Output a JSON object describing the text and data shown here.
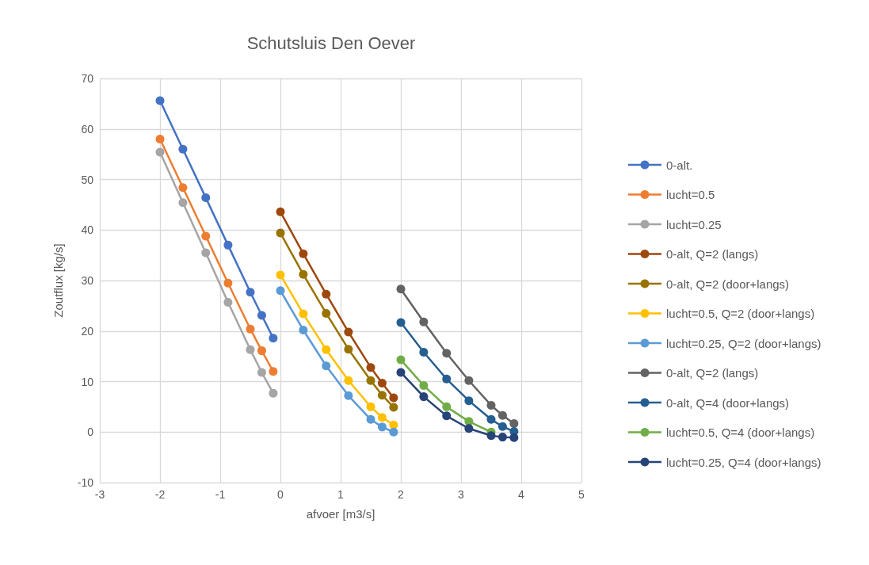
{
  "chart_data": {
    "type": "line",
    "title": "Schutsluis Den Oever",
    "xlabel": "afvoer [m3/s]",
    "ylabel": "Zoutflux [kg/s]",
    "xlim": [
      -3,
      5
    ],
    "xticks": [
      -3,
      -2,
      -1,
      0,
      1,
      2,
      3,
      4,
      5
    ],
    "ylim": [
      -10,
      70
    ],
    "yticks": [
      -10,
      0,
      10,
      20,
      30,
      40,
      50,
      60,
      70
    ],
    "grid": true,
    "legend": "right",
    "marker": "circle",
    "line_style": "solid",
    "series": [
      {
        "name": "0-alt.",
        "color": "#4472c4",
        "x": [
          -2,
          -1.62,
          -1.24,
          -0.87,
          -0.5,
          -0.31,
          -0.12
        ],
        "values": [
          65.6,
          56,
          46.4,
          37,
          27.7,
          23.1,
          18.6
        ]
      },
      {
        "name": "lucht=0.5",
        "color": "#ed7d31",
        "x": [
          -2,
          -1.62,
          -1.24,
          -0.87,
          -0.5,
          -0.31,
          -0.12
        ],
        "values": [
          58,
          48.4,
          38.8,
          29.5,
          20.4,
          16.1,
          12
        ]
      },
      {
        "name": "lucht=0.25",
        "color": "#a5a5a5",
        "x": [
          -2,
          -1.62,
          -1.24,
          -0.87,
          -0.5,
          -0.31,
          -0.12
        ],
        "values": [
          55.4,
          45.4,
          35.5,
          25.7,
          16.3,
          11.8,
          7.7
        ]
      },
      {
        "name": "0-alt, Q=2 (langs)",
        "color": "#9e480e",
        "x": [
          0,
          0.38,
          0.76,
          1.13,
          1.5,
          1.69,
          1.88
        ],
        "values": [
          43.6,
          35.3,
          27.3,
          19.8,
          12.8,
          9.7,
          6.8
        ]
      },
      {
        "name": "0-alt, Q=2 (door+langs)",
        "color": "#997300",
        "x": [
          0,
          0.38,
          0.76,
          1.13,
          1.5,
          1.69,
          1.88
        ],
        "values": [
          39.4,
          31.2,
          23.5,
          16.4,
          10.2,
          7.3,
          4.9
        ]
      },
      {
        "name": "lucht=0.5, Q=2 (door+langs)",
        "color": "#ffc000",
        "x": [
          0,
          0.38,
          0.76,
          1.13,
          1.5,
          1.69,
          1.88
        ],
        "values": [
          31.1,
          23.4,
          16.3,
          10.2,
          5,
          2.9,
          1.4
        ]
      },
      {
        "name": "lucht=0.25, Q=2 (door+langs)",
        "color": "#5b9bd5",
        "x": [
          0,
          0.38,
          0.76,
          1.13,
          1.5,
          1.69,
          1.88
        ],
        "values": [
          28,
          20.2,
          13.1,
          7.2,
          2.5,
          1,
          0
        ]
      },
      {
        "name": "0-alt, Q=2 (langs)",
        "color": "#636363",
        "x": [
          2,
          2.38,
          2.76,
          3.13,
          3.5,
          3.69,
          3.88
        ],
        "values": [
          28.3,
          21.8,
          15.6,
          10.2,
          5.3,
          3.3,
          1.7
        ]
      },
      {
        "name": "0-alt, Q=4 (door+langs)",
        "color": "#255e91",
        "x": [
          2,
          2.38,
          2.76,
          3.13,
          3.5,
          3.69,
          3.88
        ],
        "values": [
          21.7,
          15.8,
          10.5,
          6.2,
          2.5,
          1.1,
          0.1
        ]
      },
      {
        "name": "lucht=0.5, Q=4 (door+langs)",
        "color": "#70ad47",
        "x": [
          2,
          2.38,
          2.76,
          3.13,
          3.5
        ],
        "values": [
          14.3,
          9.2,
          5,
          2.1,
          0
        ]
      },
      {
        "name": "lucht=0.25, Q=4 (door+langs)",
        "color": "#264478",
        "x": [
          2,
          2.38,
          2.76,
          3.13,
          3.5,
          3.69,
          3.88
        ],
        "values": [
          11.8,
          7,
          3.2,
          0.7,
          -0.7,
          -1,
          -1.1
        ]
      }
    ]
  }
}
